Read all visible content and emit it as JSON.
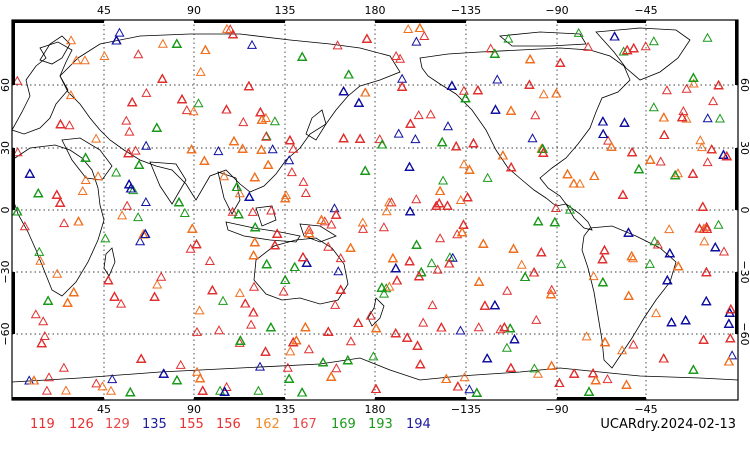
{
  "map": {
    "lon_ticks_top": [
      "45",
      "90",
      "135",
      "180",
      "−135",
      "−90",
      "−45"
    ],
    "lon_ticks_bottom": [
      "45",
      "90",
      "135",
      "180",
      "−135",
      "−90",
      "−45"
    ],
    "lat_ticks": [
      "60",
      "30",
      "0",
      "−30",
      "−60"
    ],
    "marker_shape": "triangle",
    "observation_colors": [
      "#e03030",
      "#f07020",
      "#1a9a1a",
      "#1010a0"
    ]
  },
  "legend": [
    {
      "label": "119",
      "color": "#e83030"
    },
    {
      "label": "126",
      "color": "#e83030"
    },
    {
      "label": "129",
      "color": "#e84848"
    },
    {
      "label": "135",
      "color": "#1a1aa0"
    },
    {
      "label": "155",
      "color": "#e83030"
    },
    {
      "label": "156",
      "color": "#e83030"
    },
    {
      "label": "162",
      "color": "#f08c28"
    },
    {
      "label": "167",
      "color": "#e84848"
    },
    {
      "label": "169",
      "color": "#1a9a1a"
    },
    {
      "label": "193",
      "color": "#1a9a1a"
    },
    {
      "label": "194",
      "color": "#1a1aa0"
    }
  ],
  "dataset_label": "UCARdry.2024-02-13"
}
